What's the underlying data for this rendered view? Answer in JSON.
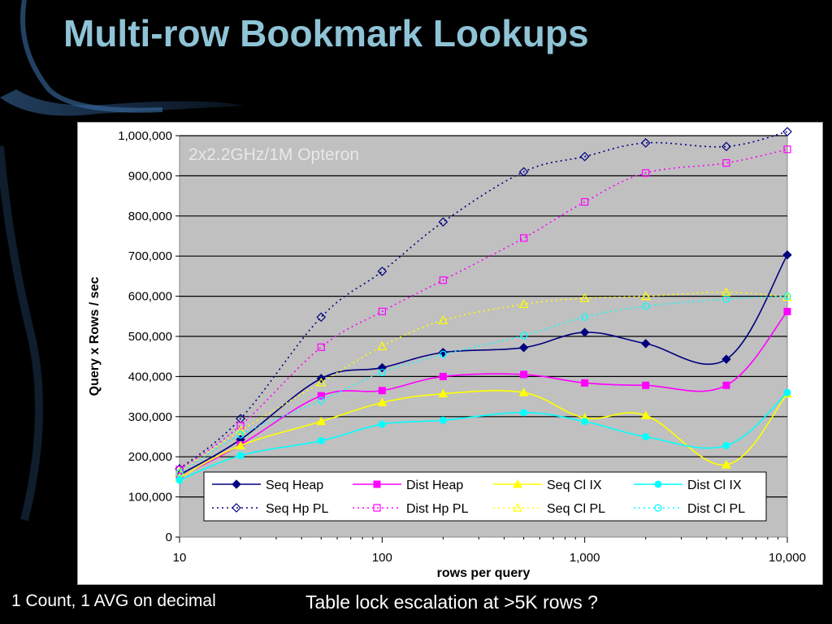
{
  "slide": {
    "title": "Multi-row Bookmark Lookups",
    "footer_left": "1 Count, 1 AVG on decimal",
    "footer_right": "Table lock escalation at >5K rows ?"
  },
  "colors": {
    "title": "#8fc3d6",
    "plot_bg": "#c0c0c0"
  },
  "chart_data": {
    "type": "line",
    "annotation": "2x2.2GHz/1M Opteron",
    "xlabel": "rows per query",
    "ylabel": "Query x Rows / sec",
    "x_scale": "log",
    "xlim": [
      10,
      10000
    ],
    "ylim": [
      0,
      1000000
    ],
    "x_ticks": [
      10,
      100,
      1000,
      10000
    ],
    "x_tick_labels": [
      "10",
      "100",
      "1,000",
      "10,000"
    ],
    "y_ticks": [
      0,
      100000,
      200000,
      300000,
      400000,
      500000,
      600000,
      700000,
      800000,
      900000,
      1000000
    ],
    "y_tick_labels": [
      "0",
      "100,000",
      "200,000",
      "300,000",
      "400,000",
      "500,000",
      "600,000",
      "700,000",
      "800,000",
      "900,000",
      "1,000,000"
    ],
    "grid": "horizontal",
    "legend": "bottom-right",
    "x": [
      10,
      20,
      50,
      100,
      200,
      500,
      1000,
      2000,
      5000,
      10000
    ],
    "series": [
      {
        "name": "Seq Heap",
        "color": "#00007f",
        "dash": "solid",
        "marker": "diamond",
        "filled": true,
        "values": [
          155000,
          243000,
          395000,
          422000,
          460000,
          472000,
          510000,
          482000,
          443000,
          703000
        ]
      },
      {
        "name": "Dist Heap",
        "color": "#ff00ff",
        "dash": "solid",
        "marker": "square",
        "filled": true,
        "values": [
          150000,
          230000,
          352000,
          365000,
          400000,
          405000,
          384000,
          378000,
          378000,
          562000
        ]
      },
      {
        "name": "Seq Cl IX",
        "color": "#ffff00",
        "dash": "solid",
        "marker": "triangle",
        "filled": true,
        "values": [
          148000,
          228000,
          288000,
          335000,
          357000,
          360000,
          297000,
          303000,
          180000,
          357000
        ]
      },
      {
        "name": "Dist Cl IX",
        "color": "#00ffff",
        "dash": "solid",
        "marker": "circle",
        "filled": true,
        "values": [
          142000,
          203000,
          240000,
          281000,
          291000,
          310000,
          288000,
          250000,
          228000,
          360000
        ]
      },
      {
        "name": "Seq Hp PL",
        "color": "#00007f",
        "dash": "dotted",
        "marker": "diamond",
        "filled": false,
        "values": [
          170000,
          295000,
          548000,
          662000,
          785000,
          910000,
          948000,
          982000,
          973000,
          1010000
        ]
      },
      {
        "name": "Dist Hp PL",
        "color": "#ff00ff",
        "dash": "dotted",
        "marker": "square",
        "filled": false,
        "values": [
          168000,
          278000,
          473000,
          562000,
          640000,
          745000,
          835000,
          907000,
          932000,
          966000
        ]
      },
      {
        "name": "Seq Cl PL",
        "color": "#ffff00",
        "dash": "dotted",
        "marker": "triangle",
        "filled": false,
        "values": [
          162000,
          265000,
          385000,
          475000,
          540000,
          580000,
          595000,
          600000,
          610000,
          598000
        ]
      },
      {
        "name": "Dist Cl PL",
        "color": "#00ffff",
        "dash": "dotted",
        "marker": "circle",
        "filled": false,
        "values": [
          160000,
          255000,
          340000,
          410000,
          455000,
          502000,
          548000,
          575000,
          593000,
          600000
        ]
      }
    ]
  }
}
